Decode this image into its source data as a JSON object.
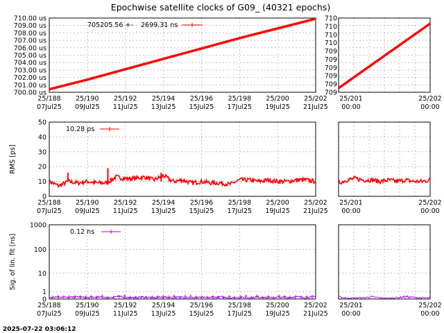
{
  "title": "Epochwise satellite clocks of G09_ (40321 epochs)",
  "timestamp": "2025-07-22 03:06:12",
  "colors": {
    "clock": "#ff0000",
    "rms": "#ff0000",
    "sig": "#a000ff",
    "grid": "#999999"
  },
  "chart_data": [
    {
      "type": "line",
      "name": "clock",
      "ylabel": "",
      "legend": {
        "value": "705205.56 +-",
        "value2": "2699.31 ns",
        "position": "top-left"
      },
      "ylim": [
        700.0,
        710.0
      ],
      "y_ticks": [
        "700.00 us",
        "701.00 us",
        "702.00 us",
        "703.00 us",
        "704.00 us",
        "705.00 us",
        "706.00 us",
        "707.00 us",
        "708.00 us",
        "709.00 us",
        "710.00 us"
      ],
      "right_y_ticks": [
        "709",
        "709",
        "709",
        "709",
        "709",
        "709",
        "710",
        "710",
        "710",
        "710"
      ],
      "x_ticks": [
        {
          "top": "25/188",
          "bottom": "07Jul25"
        },
        {
          "top": "25/190",
          "bottom": "09Jul25"
        },
        {
          "top": "25/192",
          "bottom": "11Jul25"
        },
        {
          "top": "25/194",
          "bottom": "13Jul25"
        },
        {
          "top": "25/196",
          "bottom": "15Jul25"
        },
        {
          "top": "25/198",
          "bottom": "17Jul25"
        },
        {
          "top": "25/200",
          "bottom": "19Jul25"
        },
        {
          "top": "25/202",
          "bottom": "21Jul25"
        }
      ],
      "right_x_ticks": [
        {
          "top": "25/201",
          "bottom": "00:00"
        },
        {
          "top": "25/202",
          "bottom": "00:00"
        }
      ],
      "series": [
        {
          "x": [
            188,
            190,
            192,
            194,
            196,
            198,
            200,
            202
          ],
          "y": [
            700.4,
            701.7,
            703.1,
            704.5,
            705.9,
            707.3,
            708.6,
            709.9
          ]
        }
      ]
    },
    {
      "type": "line",
      "name": "rms",
      "ylabel": "RMS [ps]",
      "legend": {
        "value": "10.28 ps",
        "position": "top-left"
      },
      "ylim": [
        0,
        50
      ],
      "y_ticks": [
        "0",
        "10",
        "20",
        "30",
        "40",
        "50"
      ],
      "x_ticks": [
        {
          "top": "25/188",
          "bottom": "07Jul25"
        },
        {
          "top": "25/190",
          "bottom": "09Jul25"
        },
        {
          "top": "25/192",
          "bottom": "11Jul25"
        },
        {
          "top": "25/194",
          "bottom": "13Jul25"
        },
        {
          "top": "25/196",
          "bottom": "15Jul25"
        },
        {
          "top": "25/198",
          "bottom": "17Jul25"
        },
        {
          "top": "25/200",
          "bottom": "19Jul25"
        },
        {
          "top": "25/202",
          "bottom": "21Jul25"
        }
      ],
      "right_x_ticks": [
        {
          "top": "25/201",
          "bottom": "00:00"
        },
        {
          "top": "25/202",
          "bottom": "00:00"
        }
      ],
      "series": [
        {
          "x": [
            188.0,
            188.5,
            189.0,
            189.5,
            190.0,
            190.5,
            191.0,
            191.5,
            192.0,
            192.5,
            193.0,
            193.5,
            194.0,
            194.5,
            195.0,
            195.5,
            196.0,
            196.5,
            197.0,
            197.5,
            198.0,
            198.5,
            199.0,
            199.5,
            200.0,
            200.5,
            201.0,
            201.5,
            202.0
          ],
          "y": [
            10,
            7,
            10,
            9,
            10,
            9,
            9,
            13,
            12,
            12,
            13,
            11,
            14,
            10,
            11,
            9,
            10,
            9,
            9,
            8,
            11,
            11,
            10,
            11,
            10,
            10,
            11,
            11,
            10
          ]
        }
      ],
      "right_series": [
        {
          "y": [
            9,
            11,
            12,
            11,
            11,
            10,
            11,
            10,
            11,
            10,
            10,
            11
          ]
        }
      ]
    },
    {
      "type": "line",
      "name": "sigma",
      "ylabel": "Sig. of lin. fit [ns]",
      "scale": "log",
      "legend": {
        "value": "0.12 ns",
        "position": "top-left"
      },
      "y_ticks": [
        "0",
        "1",
        "10",
        "100",
        "1000"
      ],
      "x_ticks": [
        {
          "top": "25/188",
          "bottom": "07Jul25"
        },
        {
          "top": "25/190",
          "bottom": "09Jul25"
        },
        {
          "top": "25/192",
          "bottom": "11Jul25"
        },
        {
          "top": "25/194",
          "bottom": "13Jul25"
        },
        {
          "top": "25/196",
          "bottom": "15Jul25"
        },
        {
          "top": "25/198",
          "bottom": "17Jul25"
        },
        {
          "top": "25/200",
          "bottom": "19Jul25"
        },
        {
          "top": "25/202",
          "bottom": "21Jul25"
        }
      ],
      "right_x_ticks": [
        {
          "top": "25/201",
          "bottom": "00:00"
        },
        {
          "top": "25/202",
          "bottom": "00:00"
        }
      ],
      "series": [
        {
          "x": [
            188.0,
            188.5,
            189.0,
            189.5,
            190.0,
            190.5,
            191.0,
            191.5,
            192.0,
            192.5,
            193.0,
            193.5,
            194.0,
            194.5,
            195.0,
            195.5,
            196.0,
            196.5,
            197.0,
            197.5,
            198.0,
            198.5,
            199.0,
            199.5,
            200.0,
            200.5,
            201.0,
            201.5,
            202.0
          ],
          "y": [
            0.15,
            0.25,
            0.12,
            0.2,
            0.1,
            0.18,
            0.12,
            0.25,
            0.15,
            0.12,
            0.2,
            0.1,
            0.18,
            0.12,
            0.2,
            0.1,
            0.15,
            0.12,
            0.2,
            0.1,
            0.15,
            0.12,
            0.18,
            0.1,
            0.15,
            0.12,
            0.2,
            0.12,
            0.25
          ]
        }
      ],
      "right_series": [
        {
          "y": [
            0.2,
            0.08,
            0.1,
            0.12,
            0.2,
            0.1,
            0.08,
            0.12,
            0.22,
            0.15,
            0.1,
            0.12
          ]
        }
      ]
    }
  ]
}
